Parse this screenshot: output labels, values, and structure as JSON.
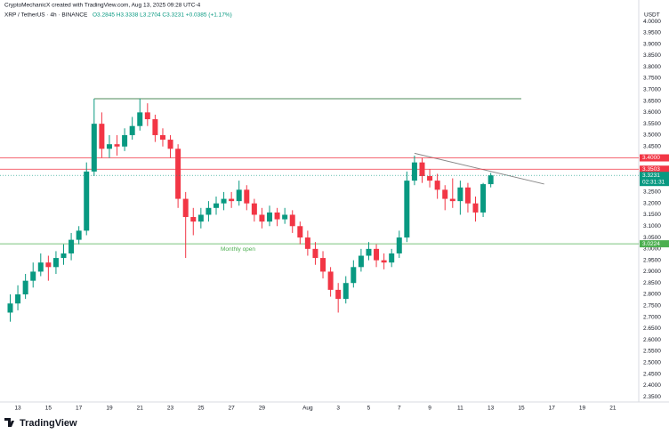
{
  "header": {
    "credit": "CryptoMechanicX created with TradingView.com, Aug 13, 2025 09:28 UTC-4",
    "symbol": "XRP / TetherUS · 4h · BINANCE",
    "ohlc": "O3.2845 H3.3338 L3.2704 C3.3231 +0.0385 (+1.17%)",
    "currency": "USDT",
    "logo": "TradingView"
  },
  "chart_data": {
    "type": "candlestick",
    "up_color": "#089981",
    "down_color": "#f23645",
    "x": [
      12.5,
      13,
      13.5,
      14,
      14.5,
      15,
      15.5,
      16,
      16.5,
      17,
      17.5,
      18,
      18.5,
      19,
      19.5,
      20,
      20.5,
      21,
      21.5,
      22,
      22.5,
      23,
      23.5,
      24,
      24.5,
      25,
      25.5,
      26,
      26.5,
      27,
      27.5,
      28,
      28.5,
      29,
      29.5,
      30,
      30.5,
      31,
      31.5,
      32,
      32.5,
      33,
      33.5,
      34,
      34.5,
      35,
      35.5,
      36,
      36.5,
      37,
      37.5,
      38,
      38.5,
      39,
      39.5,
      40,
      40.5,
      41,
      41.5,
      42,
      42.5,
      43,
      43.5,
      44
    ],
    "open": [
      2.72,
      2.76,
      2.8,
      2.86,
      2.9,
      2.94,
      2.92,
      2.96,
      2.98,
      3.04,
      3.08,
      3.34,
      3.55,
      3.44,
      3.46,
      3.45,
      3.5,
      3.54,
      3.6,
      3.57,
      3.5,
      3.48,
      3.44,
      3.22,
      3.14,
      3.12,
      3.15,
      3.18,
      3.2,
      3.22,
      3.21,
      3.26,
      3.2,
      3.15,
      3.12,
      3.16,
      3.13,
      3.15,
      3.1,
      3.05,
      3.0,
      2.96,
      2.9,
      2.82,
      2.78,
      2.85,
      2.92,
      2.97,
      3.0,
      2.95,
      2.94,
      2.98,
      3.05,
      3.3,
      3.38,
      3.32,
      3.3,
      3.26,
      3.22,
      3.21,
      3.27,
      3.2,
      3.16,
      3.2845
    ],
    "high": [
      2.8,
      2.84,
      2.89,
      2.94,
      2.98,
      2.97,
      2.99,
      3.02,
      3.07,
      3.1,
      3.38,
      3.66,
      3.6,
      3.5,
      3.5,
      3.53,
      3.58,
      3.66,
      3.64,
      3.59,
      3.53,
      3.5,
      3.46,
      3.25,
      3.18,
      3.18,
      3.21,
      3.23,
      3.25,
      3.25,
      3.3,
      3.28,
      3.22,
      3.18,
      3.19,
      3.18,
      3.18,
      3.17,
      3.12,
      3.08,
      3.03,
      2.99,
      2.92,
      2.85,
      2.88,
      2.95,
      3.0,
      3.03,
      3.02,
      2.98,
      3.0,
      3.08,
      3.34,
      3.41,
      3.4,
      3.35,
      3.33,
      3.28,
      3.31,
      3.3,
      3.29,
      3.23,
      3.29,
      3.3338
    ],
    "low": [
      2.68,
      2.73,
      2.78,
      2.83,
      2.88,
      2.86,
      2.89,
      2.93,
      2.95,
      3.02,
      3.06,
      3.32,
      3.4,
      3.4,
      3.41,
      3.43,
      3.48,
      3.52,
      3.54,
      3.47,
      3.45,
      3.4,
      3.18,
      2.96,
      3.06,
      3.09,
      3.12,
      3.15,
      3.17,
      3.18,
      3.19,
      3.17,
      3.12,
      3.09,
      3.1,
      3.1,
      3.11,
      3.07,
      3.02,
      2.97,
      2.93,
      2.87,
      2.79,
      2.72,
      2.76,
      2.83,
      2.9,
      2.95,
      2.92,
      2.91,
      2.92,
      2.96,
      3.03,
      3.28,
      3.29,
      3.27,
      3.22,
      3.17,
      3.18,
      3.15,
      3.16,
      3.12,
      3.14,
      3.2704
    ],
    "close": [
      2.76,
      2.8,
      2.86,
      2.9,
      2.94,
      2.92,
      2.96,
      2.98,
      3.04,
      3.08,
      3.34,
      3.55,
      3.44,
      3.46,
      3.45,
      3.5,
      3.54,
      3.6,
      3.57,
      3.5,
      3.48,
      3.44,
      3.22,
      3.14,
      3.12,
      3.15,
      3.18,
      3.2,
      3.22,
      3.21,
      3.26,
      3.2,
      3.15,
      3.12,
      3.16,
      3.13,
      3.15,
      3.1,
      3.05,
      3.0,
      2.96,
      2.9,
      2.82,
      2.78,
      2.85,
      2.92,
      2.97,
      3.0,
      2.95,
      2.94,
      2.98,
      3.05,
      3.3,
      3.38,
      3.32,
      3.3,
      3.26,
      3.22,
      3.21,
      3.27,
      3.2,
      3.16,
      3.2845,
      3.3231
    ],
    "xlim": [
      11.83,
      53.7
    ],
    "xticks": [
      {
        "value": 13,
        "label": "13"
      },
      {
        "value": 15,
        "label": "15"
      },
      {
        "value": 17,
        "label": "17"
      },
      {
        "value": 19,
        "label": "19"
      },
      {
        "value": 21,
        "label": "21"
      },
      {
        "value": 23,
        "label": "23"
      },
      {
        "value": 25,
        "label": "25"
      },
      {
        "value": 27,
        "label": "27"
      },
      {
        "value": 29,
        "label": "29"
      },
      {
        "value": 32,
        "label": "Aug"
      },
      {
        "value": 34,
        "label": "3"
      },
      {
        "value": 36,
        "label": "5"
      },
      {
        "value": 38,
        "label": "7"
      },
      {
        "value": 40,
        "label": "9"
      },
      {
        "value": 42,
        "label": "11"
      },
      {
        "value": 44,
        "label": "13"
      },
      {
        "value": 46,
        "label": "15"
      },
      {
        "value": 48,
        "label": "17"
      },
      {
        "value": 50,
        "label": "19"
      },
      {
        "value": 52,
        "label": "21"
      }
    ],
    "ylim": [
      2.327,
      4.094
    ],
    "yticks": [
      {
        "value": 2.35,
        "label": "2.3500"
      },
      {
        "value": 2.4,
        "label": "2.4000"
      },
      {
        "value": 2.45,
        "label": "2.4500"
      },
      {
        "value": 2.5,
        "label": "2.5000"
      },
      {
        "value": 2.55,
        "label": "2.5500"
      },
      {
        "value": 2.6,
        "label": "2.6000"
      },
      {
        "value": 2.65,
        "label": "2.6500"
      },
      {
        "value": 2.7,
        "label": "2.7000"
      },
      {
        "value": 2.75,
        "label": "2.7500"
      },
      {
        "value": 2.8,
        "label": "2.8000"
      },
      {
        "value": 2.85,
        "label": "2.8500"
      },
      {
        "value": 2.9,
        "label": "2.9000"
      },
      {
        "value": 2.95,
        "label": "2.9500"
      },
      {
        "value": 3.0,
        "label": "3.0000"
      },
      {
        "value": 3.05,
        "label": "3.0500"
      },
      {
        "value": 3.1,
        "label": "3.1000"
      },
      {
        "value": 3.15,
        "label": "3.1500"
      },
      {
        "value": 3.2,
        "label": "3.2000"
      },
      {
        "value": 3.25,
        "label": "3.2500"
      },
      {
        "value": 3.3,
        "label": "3.3000"
      },
      {
        "value": 3.35,
        "label": "3.3500"
      },
      {
        "value": 3.4,
        "label": "3.4000"
      },
      {
        "value": 3.45,
        "label": "3.4500"
      },
      {
        "value": 3.5,
        "label": "3.5000"
      },
      {
        "value": 3.55,
        "label": "3.5500"
      },
      {
        "value": 3.6,
        "label": "3.6000"
      },
      {
        "value": 3.65,
        "label": "3.6500"
      },
      {
        "value": 3.7,
        "label": "3.7000"
      },
      {
        "value": 3.75,
        "label": "3.7500"
      },
      {
        "value": 3.8,
        "label": "3.8000"
      },
      {
        "value": 3.85,
        "label": "3.8500"
      },
      {
        "value": 3.9,
        "label": "3.9000"
      },
      {
        "value": 3.95,
        "label": "3.9500"
      },
      {
        "value": 4.0,
        "label": "4.0000"
      }
    ],
    "levels": [
      {
        "value": 3.4,
        "label": "3.4000",
        "color": "#f23645"
      },
      {
        "value": 3.3503,
        "label": "3.3503",
        "color": "#f23645"
      },
      {
        "value": 3.0224,
        "label": "3.0224",
        "color": "#4caf50",
        "note": "Monthly open"
      }
    ],
    "last_price": {
      "value": 3.3231,
      "label": "3.3231",
      "countdown": "02:31:31",
      "color": "#089981"
    },
    "resistance": {
      "x": [
        18.0,
        46.0
      ],
      "y": [
        3.66,
        3.66
      ],
      "color": "#4d8b5a"
    },
    "trendline": {
      "x": [
        39.0,
        47.5
      ],
      "y": [
        3.42,
        3.285
      ],
      "color": "#888"
    }
  }
}
